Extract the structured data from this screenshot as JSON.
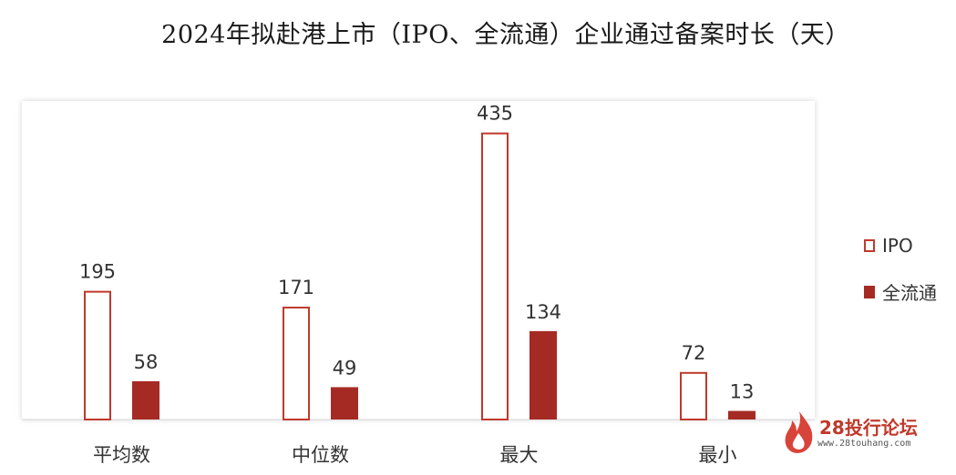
{
  "chart_data": {
    "type": "bar",
    "title": "2024年拟赴港上市（IPO、全流通）企业通过备案时长（天）",
    "categories": [
      "平均数",
      "中位数",
      "最大",
      "最小"
    ],
    "series": [
      {
        "name": "IPO",
        "values": [
          195,
          171,
          435,
          72
        ],
        "style": "outline",
        "color": "#c0392b"
      },
      {
        "name": "全流通",
        "values": [
          58,
          49,
          134,
          13
        ],
        "style": "filled",
        "color": "#a62a24"
      }
    ],
    "ylim": [
      0,
      480
    ],
    "grid": false,
    "legend": "right"
  },
  "watermark": {
    "main": "28投行论坛",
    "sub": "www.28touhang.com",
    "icon": "flame-logo"
  }
}
